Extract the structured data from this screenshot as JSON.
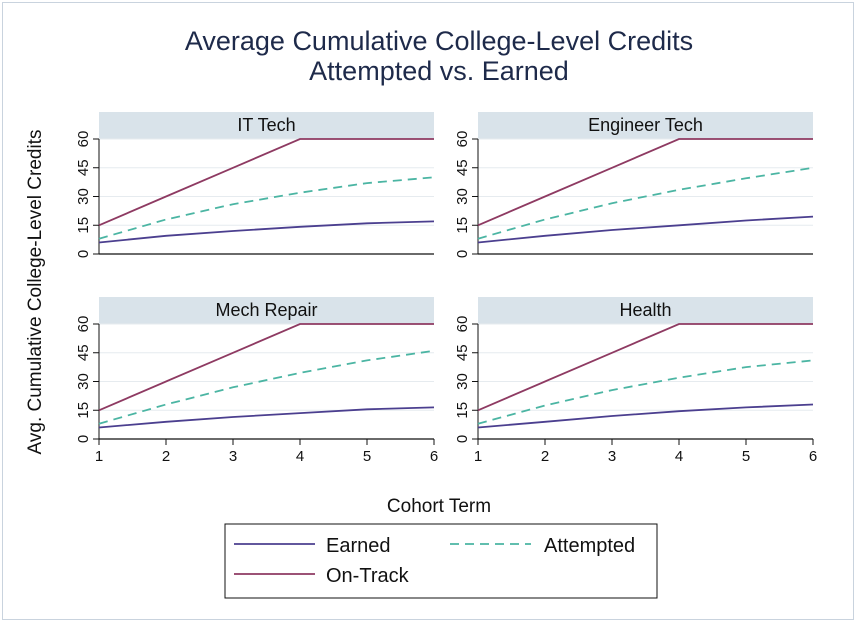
{
  "chart_data": {
    "type": "line",
    "title": [
      "Average Cumulative College-Level Credits",
      "Attempted vs. Earned"
    ],
    "xlabel": "Cohort Term",
    "ylabel": "Avg. Cumulative College-Level Credits",
    "x": [
      1,
      2,
      3,
      4,
      5,
      6
    ],
    "xlim": [
      1,
      6
    ],
    "ylim": [
      0,
      60
    ],
    "yticks": [
      0,
      15,
      30,
      45,
      60
    ],
    "grid": true,
    "legend_position": "bottom",
    "legend": [
      "Earned",
      "Attempted",
      "On-Track"
    ],
    "colors": {
      "Earned": "#4b3f8f",
      "Attempted": "#4bb5a3",
      "On-Track": "#8e3a62",
      "strip": "#d9e3ea"
    },
    "panels": [
      {
        "title": "IT Tech",
        "series": [
          {
            "name": "Earned",
            "values": [
              6,
              9.5,
              12,
              14.2,
              16,
              17
            ]
          },
          {
            "name": "Attempted",
            "values": [
              8,
              18,
              26,
              32,
              37,
              40
            ]
          },
          {
            "name": "On-Track",
            "values": [
              15,
              30,
              45,
              60,
              60,
              60
            ]
          }
        ]
      },
      {
        "title": "Engineer Tech",
        "series": [
          {
            "name": "Earned",
            "values": [
              6,
              9.5,
              12.5,
              15,
              17.5,
              19.5
            ]
          },
          {
            "name": "Attempted",
            "values": [
              8,
              18,
              26.5,
              33.5,
              39.5,
              45
            ]
          },
          {
            "name": "On-Track",
            "values": [
              15,
              30,
              45,
              60,
              60,
              60
            ]
          }
        ]
      },
      {
        "title": "Mech Repair",
        "series": [
          {
            "name": "Earned",
            "values": [
              6,
              9,
              11.5,
              13.5,
              15.5,
              16.5
            ]
          },
          {
            "name": "Attempted",
            "values": [
              8,
              18,
              27,
              34.5,
              41,
              46
            ]
          },
          {
            "name": "On-Track",
            "values": [
              15,
              30,
              45,
              60,
              60,
              60
            ]
          }
        ]
      },
      {
        "title": "Health",
        "series": [
          {
            "name": "Earned",
            "values": [
              6,
              9,
              12,
              14.5,
              16.5,
              18
            ]
          },
          {
            "name": "Attempted",
            "values": [
              8,
              17.5,
              25.5,
              32,
              37.5,
              41
            ]
          },
          {
            "name": "On-Track",
            "values": [
              15,
              30,
              45,
              60,
              60,
              60
            ]
          }
        ]
      }
    ]
  }
}
